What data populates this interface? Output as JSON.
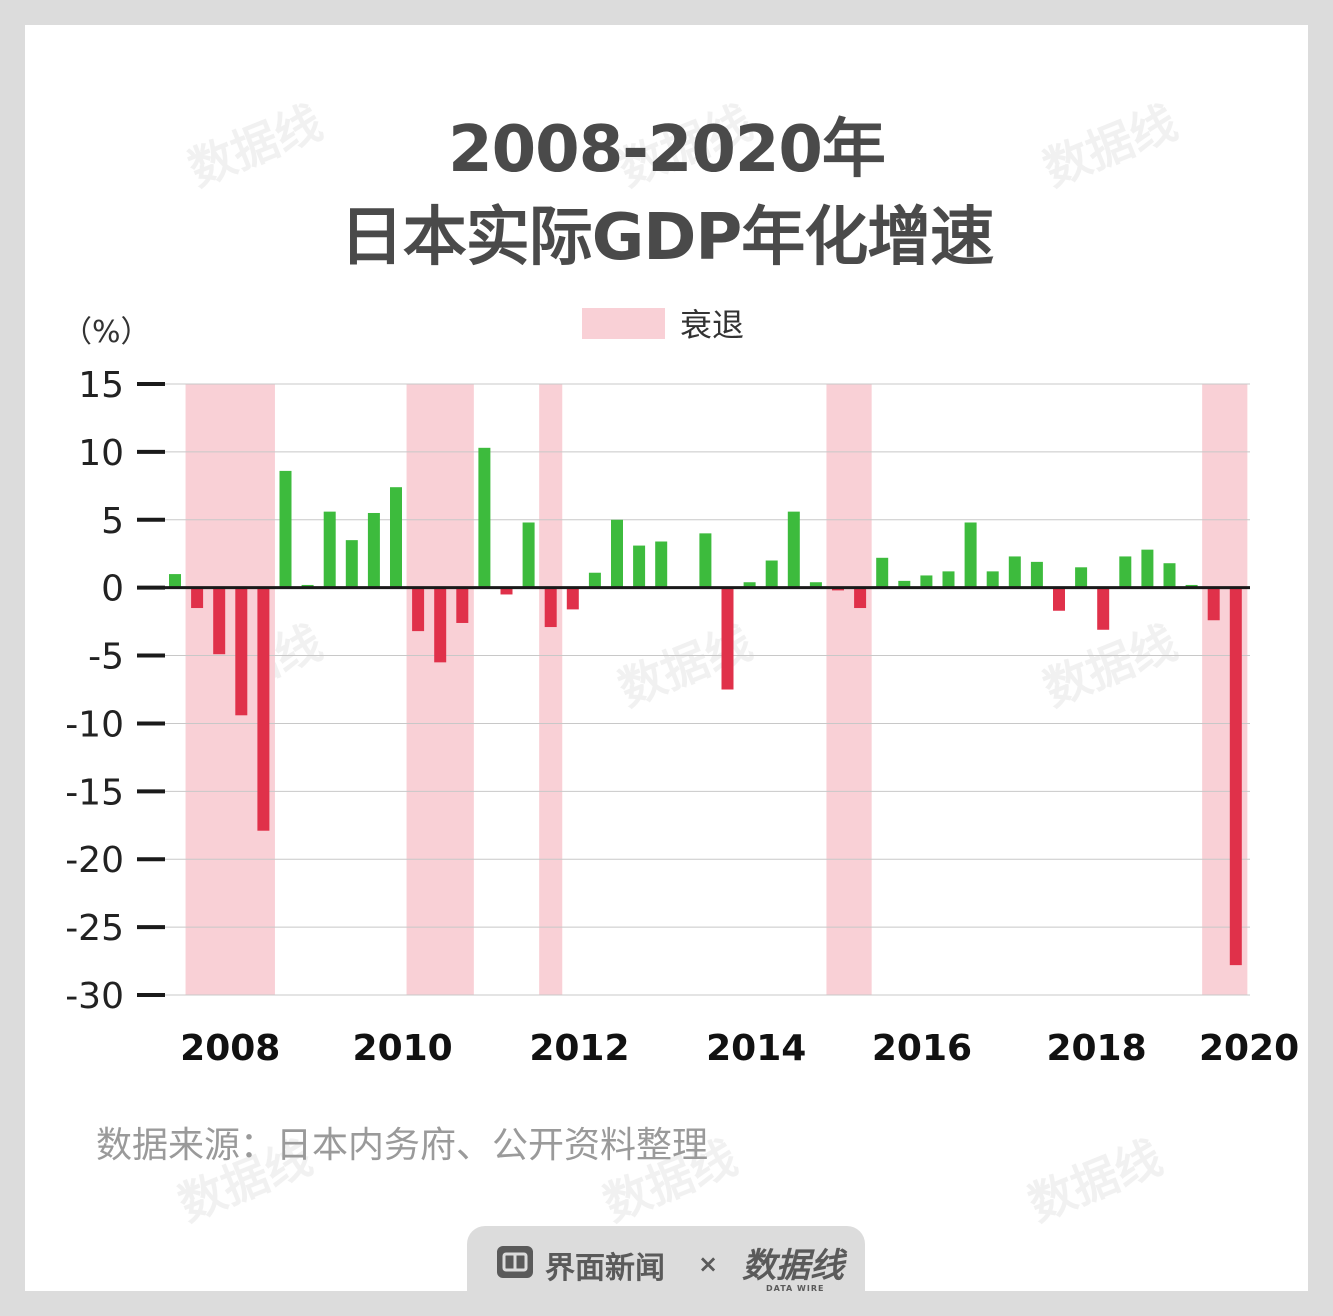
{
  "title_line1": "2008-2020年",
  "title_line2": "日本实际GDP年化增速",
  "legend_label": "衰退",
  "unit_label": "（%）",
  "source_text": "数据来源：日本内务府、公开资料整理",
  "footer": {
    "brand1": "界面新闻",
    "separator": "×",
    "brand2": "数据线",
    "brand2_sub": "DATA WIRE"
  },
  "watermark_text": "数据线",
  "colors": {
    "positive": "#3dbb3d",
    "negative": "#e0314a",
    "recession": "#f9d0d6",
    "axis": "#1a1a1a",
    "grid": "#c8c8c8"
  },
  "chart_data": {
    "type": "bar",
    "ylim": [
      -30,
      15
    ],
    "yticks": [
      15,
      10,
      5,
      0,
      -5,
      -10,
      -15,
      -20,
      -25,
      -30
    ],
    "ytick_labels": [
      "15",
      "10",
      "5",
      "0",
      "-5",
      "-10",
      "-15",
      "-20",
      "-25",
      "-30"
    ],
    "xtick_labels": [
      {
        "label": "2008",
        "at": 2.5
      },
      {
        "label": "2010",
        "at": 10.3
      },
      {
        "label": "2012",
        "at": 18.3
      },
      {
        "label": "2014",
        "at": 26.3
      },
      {
        "label": "2016",
        "at": 33.8
      },
      {
        "label": "2018",
        "at": 41.7
      },
      {
        "label": "2020",
        "at": 48.6
      }
    ],
    "recessions": [
      [
        1,
        4
      ],
      [
        11,
        13
      ],
      [
        17,
        17
      ],
      [
        30,
        31
      ],
      [
        47,
        48
      ]
    ],
    "values": [
      1.0,
      -1.5,
      -4.9,
      -9.4,
      -17.9,
      8.6,
      0.2,
      5.6,
      3.5,
      5.5,
      7.4,
      -3.2,
      -5.5,
      -2.6,
      10.3,
      -0.5,
      4.8,
      -2.9,
      -1.6,
      1.1,
      5.0,
      3.1,
      3.4,
      0.0,
      4.0,
      -7.5,
      0.4,
      2.0,
      5.6,
      0.4,
      -0.2,
      -1.5,
      2.2,
      0.5,
      0.9,
      1.2,
      4.8,
      1.2,
      2.3,
      1.9,
      -1.7,
      1.5,
      -3.1,
      2.3,
      2.8,
      1.8,
      0.2,
      -2.4,
      -27.8
    ]
  }
}
